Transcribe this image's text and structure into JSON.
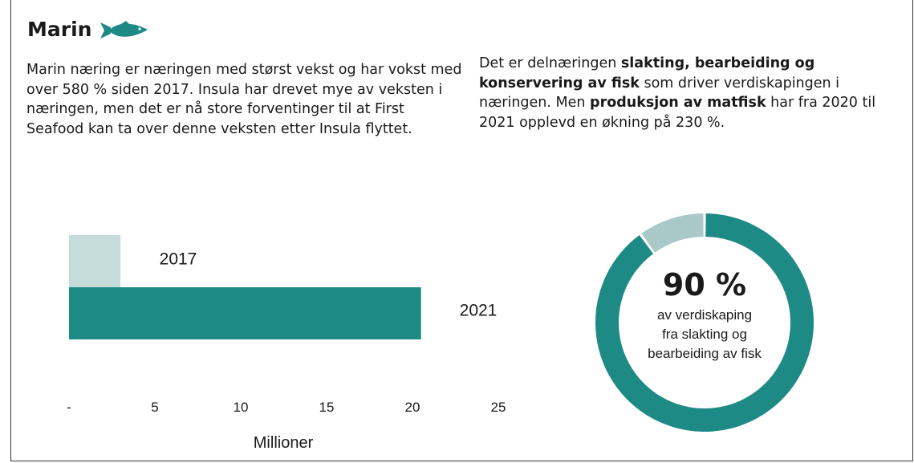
{
  "header": {
    "title": "Marin",
    "icon": "fish-icon",
    "icon_color": "#1e8a85"
  },
  "text": {
    "left": "Marin næring er næringen med størst vekst og har vokst med over 580 % siden 2017. Insula har drevet mye av veksten i næringen, men det er nå store forventinger til at First Seafood kan ta over denne veksten etter Insula flyttet.",
    "right_pre": "Det er delnæringen ",
    "right_b1": "slakting, bearbeiding og konservering av fisk",
    "right_mid": " som driver verdiskapingen i næringen. Men ",
    "right_b2": "produksjon av matfisk",
    "right_post": " har fra 2020 til 2021 opplevd en økning på 230 %."
  },
  "chart_data": [
    {
      "type": "bar",
      "orientation": "horizontal",
      "categories": [
        "2017",
        "2021"
      ],
      "values": [
        3.0,
        20.5
      ],
      "colors": [
        "#c5dcdb",
        "#1e8a85"
      ],
      "xlabel": "Millioner",
      "xlim": [
        0,
        25
      ],
      "xticks": [
        "-",
        "5",
        "10",
        "15",
        "20",
        "25"
      ],
      "grid": false
    },
    {
      "type": "pie",
      "style": "donut",
      "values": [
        90,
        10
      ],
      "colors": [
        "#1e8a85",
        "#a8c9c7"
      ],
      "center_value": "90 %",
      "center_lines": [
        "av verdiskaping",
        "fra slakting og",
        "bearbeiding av fisk"
      ]
    }
  ]
}
